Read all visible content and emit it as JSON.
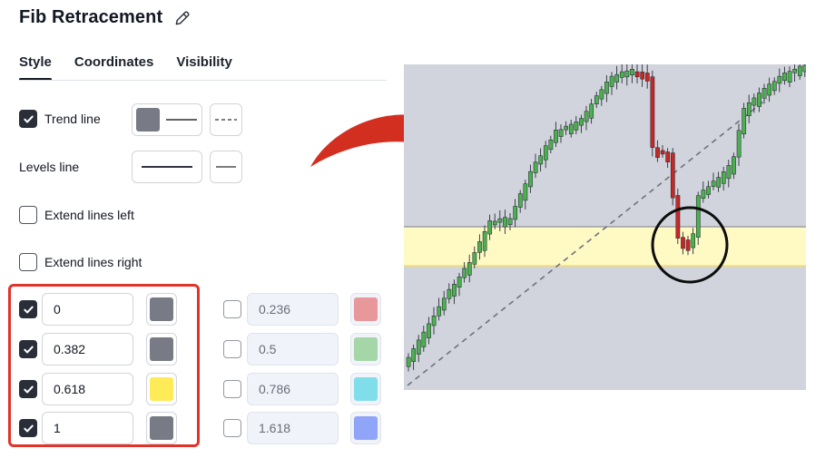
{
  "dialog": {
    "title": "Fib Retracement",
    "tabs": [
      {
        "label": "Style",
        "active": true
      },
      {
        "label": "Coordinates",
        "active": false
      },
      {
        "label": "Visibility",
        "active": false
      }
    ],
    "trend_line": {
      "label": "Trend line",
      "checked": true,
      "color": "#787b86"
    },
    "levels_line": {
      "label": "Levels line"
    },
    "extend_left": {
      "label": "Extend lines left",
      "checked": false
    },
    "extend_right": {
      "label": "Extend lines right",
      "checked": false
    },
    "levels_left": [
      {
        "value": "0",
        "checked": true,
        "color": "#787b86"
      },
      {
        "value": "0.382",
        "checked": true,
        "color": "#787b86"
      },
      {
        "value": "0.618",
        "checked": true,
        "color": "#ffeb57"
      },
      {
        "value": "1",
        "checked": true,
        "color": "#787b86"
      }
    ],
    "levels_right": [
      {
        "value": "0.236",
        "checked": false,
        "color": "#e8979b"
      },
      {
        "value": "0.5",
        "checked": false,
        "color": "#a5d6a7"
      },
      {
        "value": "0.786",
        "checked": false,
        "color": "#80deea"
      },
      {
        "value": "1.618",
        "checked": false,
        "color": "#90a4f8"
      }
    ]
  },
  "colors": {
    "highlight_red": "#e0342b",
    "arrow_red": "#d32f20",
    "chart_bg": "#d1d4dc",
    "fib_zone": "#fff9c4",
    "fib_zone_line": "#f5e25e",
    "candle_up": "#4caf50",
    "candle_down": "#c62828"
  },
  "icons": {
    "title_edit": "pencil-icon",
    "annotation": "curved-arrow-right-icon",
    "circle": "circle-annotation"
  }
}
